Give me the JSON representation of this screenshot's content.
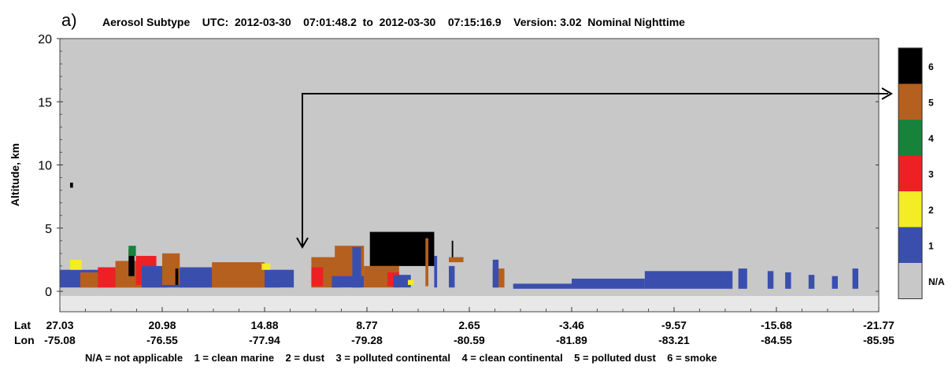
{
  "chart_data": {
    "type": "heatmap",
    "panel_label": "a)",
    "title": "Aerosol Subtype    UTC:  2012-03-30    07:01:48.2  to  2012-03-30    07:15:16.9    Version: 3.02  Nominal Nighttime",
    "ylabel": "Altitude, km",
    "ylim": [
      -0.5,
      20
    ],
    "y_ticks": [
      "0",
      "5",
      "10",
      "15",
      "20"
    ],
    "x_row_labels": [
      "Lat",
      "Lon"
    ],
    "lat_ticks": [
      "27.03",
      "20.98",
      "14.88",
      "8.77",
      "2.65",
      "-3.46",
      "-9.57",
      "-15.68",
      "-21.77"
    ],
    "lon_ticks": [
      "-75.08",
      "-76.55",
      "-77.94",
      "-79.28",
      "-80.59",
      "-81.89",
      "-83.21",
      "-84.55",
      "-85.95"
    ],
    "colorbar": [
      {
        "label": "6",
        "color": "#000000"
      },
      {
        "label": "5",
        "color": "#b5601f"
      },
      {
        "label": "4",
        "color": "#17823a"
      },
      {
        "label": "3",
        "color": "#ee2024"
      },
      {
        "label": "2",
        "color": "#f4ec24"
      },
      {
        "label": "1",
        "color": "#3a4fad"
      },
      {
        "label": "N/A",
        "color": "#c8c8c8"
      }
    ],
    "legend_text": "N/A = not applicable    1 = clean marine    2 = dust    3 = polluted continental    4 = clean continental    5 = polluted dust    6 = smoke",
    "background_color": "#c8c8c8",
    "features": [
      {
        "type": 1,
        "x0": 0,
        "x1": 8,
        "y0": 0.3,
        "y1": 1.7
      },
      {
        "type": 2,
        "x0": 0.35,
        "x1": 0.75,
        "y0": 1.7,
        "y1": 2.5
      },
      {
        "type": 5,
        "x0": 0.7,
        "x1": 1.5,
        "y0": 0.3,
        "y1": 1.5
      },
      {
        "type": 3,
        "x0": 1.3,
        "x1": 1.9,
        "y0": 0.3,
        "y1": 1.9
      },
      {
        "type": 5,
        "x0": 1.9,
        "x1": 2.8,
        "y0": 0.3,
        "y1": 2.4
      },
      {
        "type": 6,
        "x0": 2.35,
        "x1": 2.55,
        "y0": 1.2,
        "y1": 3.3
      },
      {
        "type": 4,
        "x0": 2.35,
        "x1": 2.6,
        "y0": 2.8,
        "y1": 3.6
      },
      {
        "type": 3,
        "x0": 2.6,
        "x1": 3.3,
        "y0": 0.5,
        "y1": 2.8
      },
      {
        "type": 1,
        "x0": 2.8,
        "x1": 3.7,
        "y0": 0.3,
        "y1": 2.0
      },
      {
        "type": 5,
        "x0": 3.5,
        "x1": 4.1,
        "y0": 0.5,
        "y1": 3.0
      },
      {
        "type": 6,
        "x0": 3.95,
        "x1": 4.05,
        "y0": 0.5,
        "y1": 1.8
      },
      {
        "type": 1,
        "x0": 4.1,
        "x1": 5.2,
        "y0": 0.3,
        "y1": 1.9
      },
      {
        "type": 5,
        "x0": 5.2,
        "x1": 7.0,
        "y0": 0.3,
        "y1": 2.3
      },
      {
        "type": 2,
        "x0": 6.9,
        "x1": 7.2,
        "y0": 1.7,
        "y1": 2.2
      },
      {
        "type": 1,
        "x0": 7.0,
        "x1": 7.5,
        "y0": 0.3,
        "y1": 1.4
      },
      {
        "type": 5,
        "x0": 8.6,
        "x1": 9.6,
        "y0": 0.3,
        "y1": 2.7
      },
      {
        "type": 3,
        "x0": 8.6,
        "x1": 9.0,
        "y0": 0.4,
        "y1": 1.9
      },
      {
        "type": 5,
        "x0": 9.4,
        "x1": 10.4,
        "y0": 0.8,
        "y1": 3.6
      },
      {
        "type": 1,
        "x0": 9.3,
        "x1": 10.4,
        "y0": 0.3,
        "y1": 1.2
      },
      {
        "type": 1,
        "x0": 10.0,
        "x1": 10.3,
        "y0": 0.3,
        "y1": 3.5
      },
      {
        "type": 6,
        "x0": 10.6,
        "x1": 12.8,
        "y0": 2.0,
        "y1": 4.7
      },
      {
        "type": 5,
        "x0": 10.4,
        "x1": 11.6,
        "y0": 0.3,
        "y1": 2.0
      },
      {
        "type": 3,
        "x0": 11.2,
        "x1": 11.6,
        "y0": 0.4,
        "y1": 1.5
      },
      {
        "type": 1,
        "x0": 11.4,
        "x1": 12.0,
        "y0": 0.3,
        "y1": 1.3
      },
      {
        "type": 2,
        "x0": 11.9,
        "x1": 12.1,
        "y0": 0.5,
        "y1": 0.9
      },
      {
        "type": 5,
        "x0": 12.5,
        "x1": 12.6,
        "y0": 0.4,
        "y1": 4.2
      },
      {
        "type": 1,
        "x0": 12.8,
        "x1": 12.9,
        "y0": 0.3,
        "y1": 2.8
      },
      {
        "type": 6,
        "x0": 13.4,
        "x1": 13.45,
        "y0": 2.6,
        "y1": 4.0
      },
      {
        "type": 5,
        "x0": 13.3,
        "x1": 13.8,
        "y0": 2.3,
        "y1": 2.7
      },
      {
        "type": 1,
        "x0": 13.3,
        "x1": 13.5,
        "y0": 0.3,
        "y1": 2.0
      },
      {
        "type": 5,
        "x0": 14.8,
        "x1": 15.2,
        "y0": 0.3,
        "y1": 1.8
      },
      {
        "type": 1,
        "x0": 14.8,
        "x1": 15.0,
        "y0": 0.3,
        "y1": 2.5
      },
      {
        "type": 1,
        "x0": 15.5,
        "x1": 17.5,
        "y0": 0.2,
        "y1": 0.6
      },
      {
        "type": 1,
        "x0": 17.5,
        "x1": 20.0,
        "y0": 0.2,
        "y1": 1.0
      },
      {
        "type": 1,
        "x0": 20.0,
        "x1": 23.0,
        "y0": 0.2,
        "y1": 1.6
      },
      {
        "type": 1,
        "x0": 23.2,
        "x1": 23.5,
        "y0": 0.2,
        "y1": 1.8
      },
      {
        "type": 1,
        "x0": 24.2,
        "x1": 24.4,
        "y0": 0.2,
        "y1": 1.6
      },
      {
        "type": 1,
        "x0": 24.8,
        "x1": 25.0,
        "y0": 0.2,
        "y1": 1.5
      },
      {
        "type": 1,
        "x0": 25.6,
        "x1": 25.8,
        "y0": 0.2,
        "y1": 1.3
      },
      {
        "type": 1,
        "x0": 26.4,
        "x1": 26.6,
        "y0": 0.2,
        "y1": 1.2
      },
      {
        "type": 1,
        "x0": 27.1,
        "x1": 27.3,
        "y0": 0.2,
        "y1": 1.8
      },
      {
        "type": 6,
        "x0": 0.35,
        "x1": 0.45,
        "y0": 8.2,
        "y1": 8.6
      }
    ],
    "annotation": "arrow from the 5 (polluted dust) colorbar entry to a polluted-dust layer near 14.88 / -77.94"
  }
}
